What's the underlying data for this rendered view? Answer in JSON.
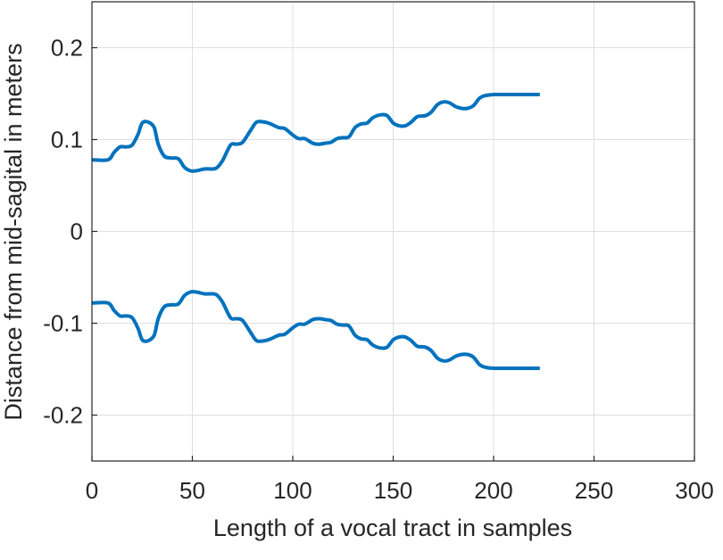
{
  "chart_data": {
    "type": "line",
    "title": "",
    "xlabel": "Length of a vocal tract in samples",
    "ylabel": "Distance from mid-sagital in meters",
    "xlim": [
      0,
      300
    ],
    "ylim": [
      -0.25,
      0.25
    ],
    "xticks": [
      0,
      50,
      100,
      150,
      200,
      250,
      300
    ],
    "xtick_labels": [
      "0",
      "50",
      "100",
      "150",
      "200",
      "250",
      "300"
    ],
    "yticks": [
      -0.2,
      -0.1,
      0,
      0.1,
      0.2
    ],
    "ytick_labels": [
      "-0.2",
      "-0.1",
      "0",
      "0.1",
      "0.2"
    ],
    "grid": true,
    "legend": "none",
    "color": "#0072BD",
    "series": [
      {
        "x": [
          0,
          8,
          11,
          14,
          17,
          20,
          23,
          25,
          28,
          31,
          33,
          36,
          39,
          43,
          46,
          49,
          52,
          56,
          59,
          62,
          65,
          69,
          72,
          75,
          79,
          82,
          86,
          89,
          93,
          96,
          100,
          103,
          106,
          110,
          113,
          116,
          119,
          122,
          125,
          128,
          131,
          134,
          137,
          140,
          144,
          147,
          150,
          153,
          156,
          159,
          162,
          166,
          169,
          172,
          175,
          178,
          181,
          184,
          187,
          190,
          193,
          196,
          200,
          203,
          206,
          210,
          213,
          216,
          220,
          223
        ],
        "y": [
          0.078,
          0.078,
          0.086,
          0.092,
          0.092,
          0.094,
          0.106,
          0.118,
          0.119,
          0.113,
          0.095,
          0.082,
          0.08,
          0.079,
          0.07,
          0.066,
          0.066,
          0.068,
          0.068,
          0.069,
          0.077,
          0.094,
          0.095,
          0.097,
          0.11,
          0.119,
          0.119,
          0.117,
          0.113,
          0.112,
          0.105,
          0.101,
          0.101,
          0.096,
          0.095,
          0.096,
          0.097,
          0.101,
          0.102,
          0.103,
          0.113,
          0.117,
          0.118,
          0.124,
          0.127,
          0.126,
          0.118,
          0.115,
          0.115,
          0.119,
          0.125,
          0.126,
          0.13,
          0.138,
          0.141,
          0.14,
          0.136,
          0.134,
          0.134,
          0.137,
          0.145,
          0.148,
          0.149,
          0.149,
          0.149,
          0.149,
          0.149,
          0.149,
          0.149,
          0.149
        ]
      },
      {
        "x": [
          0,
          8,
          11,
          14,
          17,
          20,
          23,
          25,
          28,
          31,
          33,
          36,
          39,
          43,
          46,
          49,
          52,
          56,
          59,
          62,
          65,
          69,
          72,
          75,
          79,
          82,
          86,
          89,
          93,
          96,
          100,
          103,
          106,
          110,
          113,
          116,
          119,
          122,
          125,
          128,
          131,
          134,
          137,
          140,
          144,
          147,
          150,
          153,
          156,
          159,
          162,
          166,
          169,
          172,
          175,
          178,
          181,
          184,
          187,
          190,
          193,
          196,
          200,
          203,
          206,
          210,
          213,
          216,
          220,
          223
        ],
        "y": [
          -0.078,
          -0.078,
          -0.086,
          -0.092,
          -0.092,
          -0.094,
          -0.106,
          -0.118,
          -0.119,
          -0.113,
          -0.095,
          -0.082,
          -0.08,
          -0.079,
          -0.07,
          -0.066,
          -0.066,
          -0.068,
          -0.068,
          -0.069,
          -0.077,
          -0.094,
          -0.095,
          -0.097,
          -0.11,
          -0.119,
          -0.119,
          -0.117,
          -0.113,
          -0.112,
          -0.105,
          -0.101,
          -0.101,
          -0.096,
          -0.095,
          -0.096,
          -0.097,
          -0.101,
          -0.102,
          -0.103,
          -0.113,
          -0.117,
          -0.118,
          -0.124,
          -0.127,
          -0.126,
          -0.118,
          -0.115,
          -0.115,
          -0.119,
          -0.125,
          -0.126,
          -0.13,
          -0.138,
          -0.141,
          -0.14,
          -0.136,
          -0.134,
          -0.134,
          -0.137,
          -0.145,
          -0.148,
          -0.149,
          -0.149,
          -0.149,
          -0.149,
          -0.149,
          -0.149,
          -0.149,
          -0.149
        ]
      }
    ]
  }
}
